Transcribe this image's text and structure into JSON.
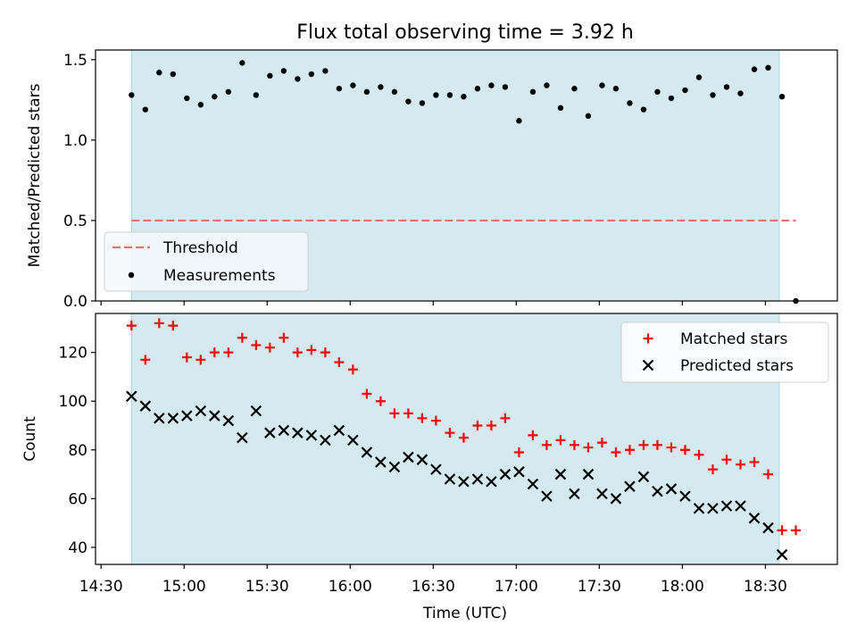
{
  "figure": {
    "title": "Flux total observing time = 3.92 h",
    "xlabel": "Time (UTC)",
    "x_tick_labels": [
      "14:30",
      "15:00",
      "15:30",
      "16:00",
      "16:30",
      "17:00",
      "17:30",
      "18:00",
      "18:30"
    ]
  },
  "colors": {
    "shade": "#d4eaf0",
    "shade_edge": "#a9d3df",
    "threshold": "#ef6f6c",
    "measurements": "#000000",
    "matched": "#ff0000",
    "predicted": "#000000",
    "axes": "#000000"
  },
  "chart_data": [
    {
      "type": "scatter",
      "panel": "top",
      "ylabel": "Matched/Predicted stars",
      "ylim": [
        0.0,
        1.56
      ],
      "y_ticks": [
        0.0,
        0.5,
        1.0,
        1.5
      ],
      "y_tick_labels": [
        "0.0",
        "0.5",
        "1.0",
        "1.5"
      ],
      "xlim": [
        "14:28",
        "18:56"
      ],
      "shaded_span": [
        "14:41",
        "18:35"
      ],
      "legend": {
        "placement": "lower-left",
        "entries": [
          {
            "label": "Threshold",
            "style": "dashed-line"
          },
          {
            "label": "Measurements",
            "style": "dot"
          }
        ]
      },
      "threshold": {
        "y": 0.5,
        "x_range": [
          "14:41",
          "18:41"
        ]
      },
      "series": [
        {
          "name": "Measurements",
          "x": [
            "14:41",
            "14:46",
            "14:51",
            "14:56",
            "15:01",
            "15:06",
            "15:11",
            "15:16",
            "15:21",
            "15:26",
            "15:31",
            "15:36",
            "15:41",
            "15:46",
            "15:51",
            "15:56",
            "16:01",
            "16:06",
            "16:11",
            "16:16",
            "16:21",
            "16:26",
            "16:31",
            "16:36",
            "16:41",
            "16:46",
            "16:51",
            "16:56",
            "17:01",
            "17:06",
            "17:11",
            "17:16",
            "17:21",
            "17:26",
            "17:31",
            "17:36",
            "17:41",
            "17:46",
            "17:51",
            "17:56",
            "18:01",
            "18:06",
            "18:11",
            "18:16",
            "18:21",
            "18:26",
            "18:31",
            "18:36",
            "18:41"
          ],
          "values": [
            1.28,
            1.19,
            1.42,
            1.41,
            1.26,
            1.22,
            1.27,
            1.3,
            1.48,
            1.28,
            1.4,
            1.43,
            1.38,
            1.41,
            1.43,
            1.32,
            1.34,
            1.3,
            1.33,
            1.3,
            1.24,
            1.23,
            1.28,
            1.28,
            1.27,
            1.32,
            1.34,
            1.33,
            1.12,
            1.3,
            1.34,
            1.2,
            1.32,
            1.15,
            1.34,
            1.32,
            1.23,
            1.19,
            1.3,
            1.26,
            1.31,
            1.39,
            1.28,
            1.33,
            1.29,
            1.44,
            1.45,
            1.27,
            0.0
          ]
        }
      ]
    },
    {
      "type": "scatter",
      "panel": "bottom",
      "ylabel": "Count",
      "ylim": [
        33,
        136
      ],
      "y_ticks": [
        40,
        60,
        80,
        100,
        120
      ],
      "y_tick_labels": [
        "40",
        "60",
        "80",
        "100",
        "120"
      ],
      "xlim": [
        "14:28",
        "18:56"
      ],
      "shaded_span": [
        "14:41",
        "18:35"
      ],
      "legend": {
        "placement": "top-right",
        "entries": [
          {
            "label": "Matched stars",
            "style": "plus"
          },
          {
            "label": "Predicted stars",
            "style": "x"
          }
        ]
      },
      "series": [
        {
          "name": "Matched stars",
          "x": [
            "14:41",
            "14:46",
            "14:51",
            "14:56",
            "15:01",
            "15:06",
            "15:11",
            "15:16",
            "15:21",
            "15:26",
            "15:31",
            "15:36",
            "15:41",
            "15:46",
            "15:51",
            "15:56",
            "16:01",
            "16:06",
            "16:11",
            "16:16",
            "16:21",
            "16:26",
            "16:31",
            "16:36",
            "16:41",
            "16:46",
            "16:51",
            "16:56",
            "17:01",
            "17:06",
            "17:11",
            "17:16",
            "17:21",
            "17:26",
            "17:31",
            "17:36",
            "17:41",
            "17:46",
            "17:51",
            "17:56",
            "18:01",
            "18:06",
            "18:11",
            "18:16",
            "18:21",
            "18:26",
            "18:31",
            "18:36",
            "18:41"
          ],
          "values": [
            131,
            117,
            132,
            131,
            118,
            117,
            120,
            120,
            126,
            123,
            122,
            126,
            120,
            121,
            120,
            116,
            113,
            103,
            100,
            95,
            95,
            93,
            92,
            87,
            85,
            90,
            90,
            93,
            79,
            86,
            82,
            84,
            82,
            81,
            83,
            79,
            80,
            82,
            82,
            81,
            80,
            78,
            72,
            76,
            74,
            75,
            70,
            47,
            47
          ]
        },
        {
          "name": "Predicted stars",
          "x": [
            "14:41",
            "14:46",
            "14:51",
            "14:56",
            "15:01",
            "15:06",
            "15:11",
            "15:16",
            "15:21",
            "15:26",
            "15:31",
            "15:36",
            "15:41",
            "15:46",
            "15:51",
            "15:56",
            "16:01",
            "16:06",
            "16:11",
            "16:16",
            "16:21",
            "16:26",
            "16:31",
            "16:36",
            "16:41",
            "16:46",
            "16:51",
            "16:56",
            "17:01",
            "17:06",
            "17:11",
            "17:16",
            "17:21",
            "17:26",
            "17:31",
            "17:36",
            "17:41",
            "17:46",
            "17:51",
            "17:56",
            "18:01",
            "18:06",
            "18:11",
            "18:16",
            "18:21",
            "18:26",
            "18:31",
            "18:36"
          ],
          "values": [
            102,
            98,
            93,
            93,
            94,
            96,
            94,
            92,
            85,
            96,
            87,
            88,
            87,
            86,
            84,
            88,
            84,
            79,
            75,
            73,
            77,
            76,
            72,
            68,
            67,
            68,
            67,
            70,
            71,
            66,
            61,
            70,
            62,
            70,
            62,
            60,
            65,
            69,
            63,
            64,
            61,
            56,
            56,
            57,
            57,
            52,
            48,
            37
          ]
        }
      ]
    }
  ]
}
